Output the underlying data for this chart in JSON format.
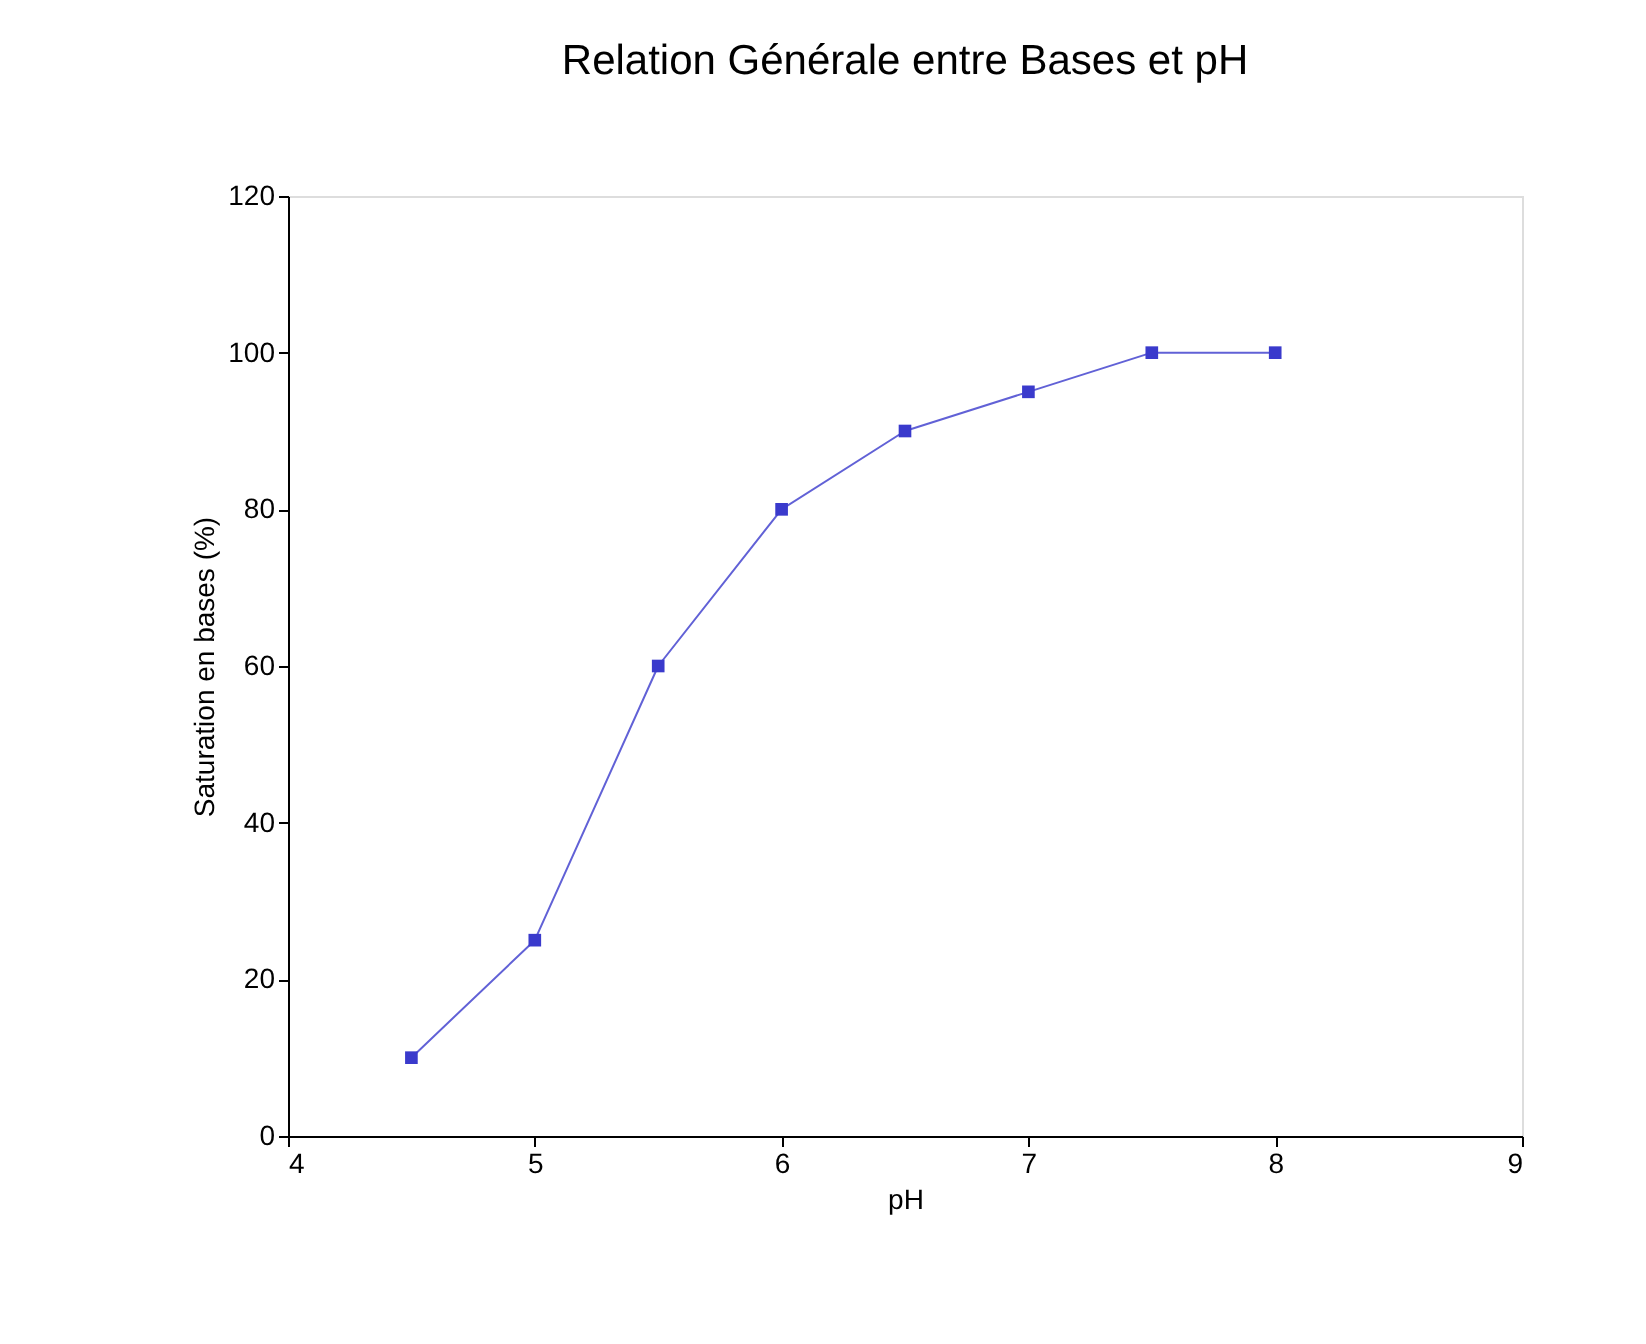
{
  "chart_data": {
    "type": "line",
    "title": "Relation Générale entre Bases et pH",
    "xlabel": "pH",
    "ylabel": "Saturation en bases (%)",
    "x": [
      4.5,
      5,
      5.5,
      6,
      6.5,
      7,
      7.5,
      8
    ],
    "series": [
      {
        "color": "#3a3acc",
        "values": [
          10,
          25,
          60,
          80,
          90,
          95,
          100,
          100
        ]
      }
    ],
    "xlim": [
      4,
      9
    ],
    "xticks": [
      4,
      5,
      6,
      7,
      8,
      9
    ],
    "ylim": [
      0,
      120
    ],
    "yticks": [
      0,
      20,
      40,
      60,
      80,
      100,
      120
    ],
    "grid": false,
    "marker": "square",
    "line_style": "solid"
  }
}
